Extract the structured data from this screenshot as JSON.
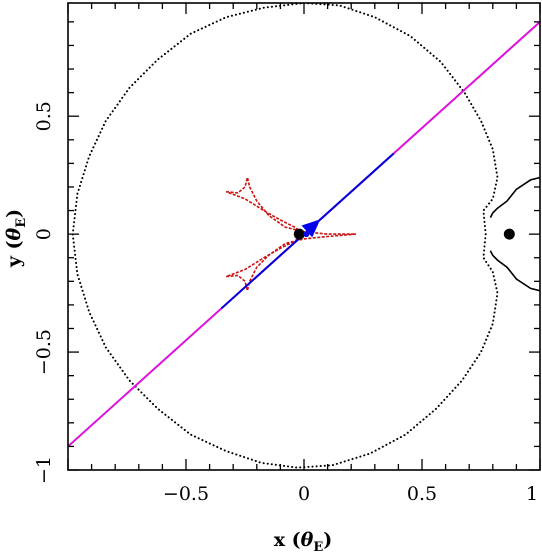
{
  "chart_data": {
    "type": "line",
    "title": "",
    "xlabel": {
      "main": "x",
      "open": "(",
      "symbol": "θ",
      "sub": "E",
      "close": ")"
    },
    "ylabel": {
      "main": "y",
      "open": "(",
      "symbol": "θ",
      "sub": "E",
      "close": ")"
    },
    "xlim": [
      -1.0,
      1.0
    ],
    "ylim": [
      -1.0,
      0.98
    ],
    "xticks": [
      {
        "value": -0.5,
        "label": "−0.5"
      },
      {
        "value": 0,
        "label": "0"
      },
      {
        "value": 0.5,
        "label": "0.5"
      },
      {
        "value": 1,
        "label": "1"
      }
    ],
    "yticks": [
      {
        "value": -1,
        "label": "−1"
      },
      {
        "value": -0.5,
        "label": "−0.5"
      },
      {
        "value": 0,
        "label": "0"
      },
      {
        "value": 0.5,
        "label": "0.5"
      }
    ],
    "colors": {
      "critical_curve": "#000000",
      "caustic": "#cc1111",
      "trajectory_outer": "#dd11dd",
      "trajectory_inner": "#0000dd",
      "arrow": "#0000ee",
      "lens": "#000000"
    },
    "lenses": [
      {
        "x": -0.02,
        "y": 0.0
      },
      {
        "x": 0.87,
        "y": 0.0
      }
    ],
    "trajectory": {
      "slope": 0.9,
      "intercept": 0.0,
      "x_range": [
        -1.0,
        1.0
      ],
      "inner_x_range": [
        -0.35,
        0.38
      ]
    },
    "arrow": {
      "x": 0.035,
      "y": 0.032,
      "direction": "upper-right"
    },
    "source": {
      "x": 0.01,
      "y": 0.0
    },
    "critical_curve_main": {
      "style": "dotted",
      "points": [
        [
          0.0,
          0.98
        ],
        [
          0.15,
          0.97
        ],
        [
          0.3,
          0.92
        ],
        [
          0.45,
          0.84
        ],
        [
          0.58,
          0.73
        ],
        [
          0.68,
          0.6
        ],
        [
          0.75,
          0.48
        ],
        [
          0.8,
          0.36
        ],
        [
          0.82,
          0.24
        ],
        [
          0.8,
          0.15
        ],
        [
          0.76,
          0.1
        ],
        [
          0.77,
          0.0
        ],
        [
          0.76,
          -0.1
        ],
        [
          0.8,
          -0.16
        ],
        [
          0.82,
          -0.25
        ],
        [
          0.8,
          -0.38
        ],
        [
          0.75,
          -0.5
        ],
        [
          0.67,
          -0.62
        ],
        [
          0.56,
          -0.74
        ],
        [
          0.43,
          -0.85
        ],
        [
          0.28,
          -0.93
        ],
        [
          0.12,
          -0.98
        ],
        [
          -0.03,
          -0.99
        ],
        [
          -0.18,
          -0.97
        ],
        [
          -0.33,
          -0.92
        ],
        [
          -0.48,
          -0.85
        ],
        [
          -0.62,
          -0.74
        ],
        [
          -0.74,
          -0.62
        ],
        [
          -0.84,
          -0.48
        ],
        [
          -0.91,
          -0.33
        ],
        [
          -0.96,
          -0.17
        ],
        [
          -0.98,
          0.0
        ],
        [
          -0.96,
          0.17
        ],
        [
          -0.91,
          0.33
        ],
        [
          -0.84,
          0.48
        ],
        [
          -0.74,
          0.62
        ],
        [
          -0.62,
          0.74
        ],
        [
          -0.48,
          0.85
        ],
        [
          -0.33,
          0.92
        ],
        [
          -0.17,
          0.96
        ],
        [
          0.0,
          0.98
        ]
      ]
    },
    "critical_curve_small": [
      {
        "style": "solid",
        "points": [
          [
            1.0,
            0.24
          ],
          [
            0.96,
            0.23
          ],
          [
            0.9,
            0.19
          ],
          [
            0.86,
            0.14
          ],
          [
            0.82,
            0.11
          ],
          [
            0.8,
            0.09
          ],
          [
            0.79,
            0.07
          ]
        ]
      },
      {
        "style": "solid",
        "points": [
          [
            1.0,
            -0.24
          ],
          [
            0.96,
            -0.23
          ],
          [
            0.9,
            -0.19
          ],
          [
            0.86,
            -0.14
          ],
          [
            0.82,
            -0.11
          ],
          [
            0.8,
            -0.09
          ],
          [
            0.79,
            -0.07
          ]
        ]
      }
    ],
    "caustic": {
      "style": "dotted",
      "points": [
        [
          -0.33,
          0.18
        ],
        [
          -0.28,
          0.175
        ],
        [
          -0.25,
          0.2
        ],
        [
          -0.24,
          0.24
        ],
        [
          -0.23,
          0.2
        ],
        [
          -0.2,
          0.14
        ],
        [
          -0.15,
          0.08
        ],
        [
          -0.08,
          0.03
        ],
        [
          0.0,
          0.01
        ],
        [
          0.1,
          0.0
        ],
        [
          0.22,
          0.0
        ],
        [
          0.1,
          -0.01
        ],
        [
          0.0,
          -0.02
        ],
        [
          -0.08,
          -0.04
        ],
        [
          -0.15,
          -0.09
        ],
        [
          -0.2,
          -0.14
        ],
        [
          -0.23,
          -0.2
        ],
        [
          -0.24,
          -0.24
        ],
        [
          -0.25,
          -0.2
        ],
        [
          -0.28,
          -0.175
        ],
        [
          -0.33,
          -0.18
        ],
        [
          -0.25,
          -0.15
        ],
        [
          -0.17,
          -0.1
        ],
        [
          -0.1,
          -0.06
        ],
        [
          -0.04,
          -0.03
        ],
        [
          0.0,
          0.0
        ],
        [
          -0.04,
          0.03
        ],
        [
          -0.1,
          0.06
        ],
        [
          -0.17,
          0.1
        ],
        [
          -0.25,
          0.15
        ],
        [
          -0.33,
          0.18
        ]
      ]
    }
  }
}
